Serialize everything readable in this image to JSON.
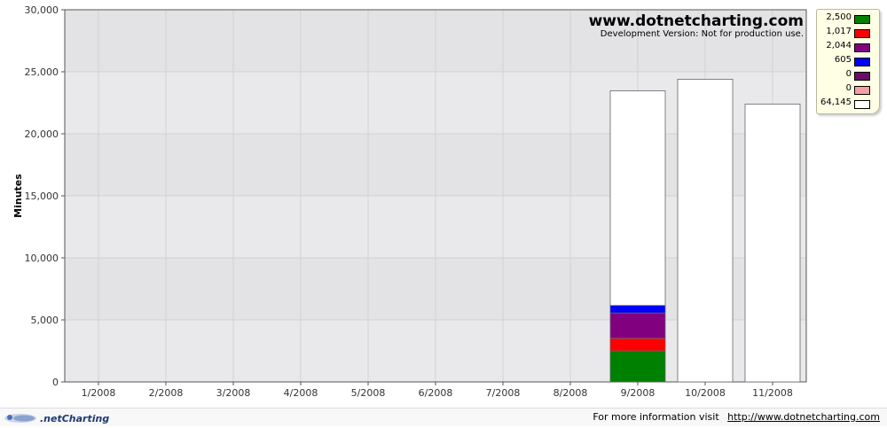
{
  "chart_data": {
    "type": "bar",
    "stacked": true,
    "categories": [
      "1/2008",
      "2/2008",
      "3/2008",
      "4/2008",
      "5/2008",
      "6/2008",
      "7/2008",
      "8/2008",
      "9/2008",
      "10/2008",
      "11/2008"
    ],
    "series": [
      {
        "values": [
          0,
          0,
          0,
          0,
          0,
          0,
          0,
          0,
          2500,
          0,
          0
        ],
        "color": "#008000"
      },
      {
        "values": [
          0,
          0,
          0,
          0,
          0,
          0,
          0,
          0,
          1017,
          0,
          0
        ],
        "color": "#ff0000"
      },
      {
        "values": [
          0,
          0,
          0,
          0,
          0,
          0,
          0,
          0,
          2044,
          0,
          0
        ],
        "color": "#800080"
      },
      {
        "values": [
          0,
          0,
          0,
          0,
          0,
          0,
          0,
          0,
          605,
          0,
          0
        ],
        "color": "#0000ff"
      },
      {
        "values": [
          0,
          0,
          0,
          0,
          0,
          0,
          0,
          0,
          0,
          0,
          0
        ],
        "color": "#6a0d6a"
      },
      {
        "values": [
          0,
          0,
          0,
          0,
          0,
          0,
          0,
          0,
          0,
          0,
          0
        ],
        "color": "#f4a0a0"
      },
      {
        "values": [
          0,
          0,
          0,
          0,
          0,
          0,
          0,
          0,
          17300,
          24400,
          22400
        ],
        "color": "#ffffff"
      }
    ],
    "ylabel": "Minutes",
    "ylim": [
      0,
      30000
    ],
    "yticks": [
      0,
      5000,
      10000,
      15000,
      20000,
      25000,
      30000
    ],
    "ytick_labels": [
      "0",
      "5,000",
      "10,000",
      "15,000",
      "20,000",
      "25,000",
      "30,000"
    ],
    "grid": true,
    "legend_position": "top-right",
    "legend": [
      {
        "value_label": "2,500",
        "color": "#008000"
      },
      {
        "value_label": "1,017",
        "color": "#ff0000"
      },
      {
        "value_label": "2,044",
        "color": "#800080"
      },
      {
        "value_label": "605",
        "color": "#0000ff"
      },
      {
        "value_label": "0",
        "color": "#6a0d6a"
      },
      {
        "value_label": "0",
        "color": "#f4a0a0"
      },
      {
        "value_label": "64,145",
        "color": "#ffffff"
      }
    ],
    "plot_background": "#e3e3e6",
    "watermark": {
      "title": "www.dotnetcharting.com",
      "subtitle": "Development Version: Not for production use."
    }
  },
  "footer": {
    "logo_text": ".netCharting",
    "info_text": "For more information visit",
    "link_text": "http://www.dotnetcharting.com"
  }
}
